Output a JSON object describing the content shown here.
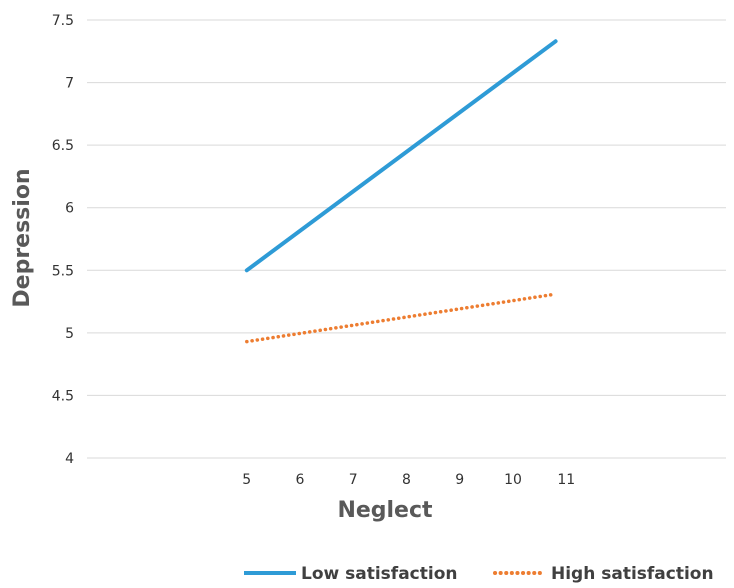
{
  "chart_data": {
    "type": "line",
    "xlabel": "Neglect",
    "ylabel": "Depression",
    "ylim": [
      4,
      7.5
    ],
    "xlim": [
      2,
      14
    ],
    "x_ticks": [
      "5",
      "6",
      "7",
      "8",
      "9",
      "10",
      "11"
    ],
    "y_ticks": [
      "4",
      "4.5",
      "5",
      "5.5",
      "6",
      "6.5",
      "7",
      "7.5"
    ],
    "grid": true,
    "legend_position": "bottom-right",
    "series": [
      {
        "name": "Low satisfaction",
        "color": "#2e9bd6",
        "style": "solid",
        "x": [
          5,
          10.8
        ],
        "y": [
          5.5,
          7.33
        ]
      },
      {
        "name": "High satisfaction",
        "color": "#ed7d31",
        "style": "dotted",
        "x": [
          5,
          10.8
        ],
        "y": [
          4.93,
          5.31
        ]
      }
    ]
  }
}
